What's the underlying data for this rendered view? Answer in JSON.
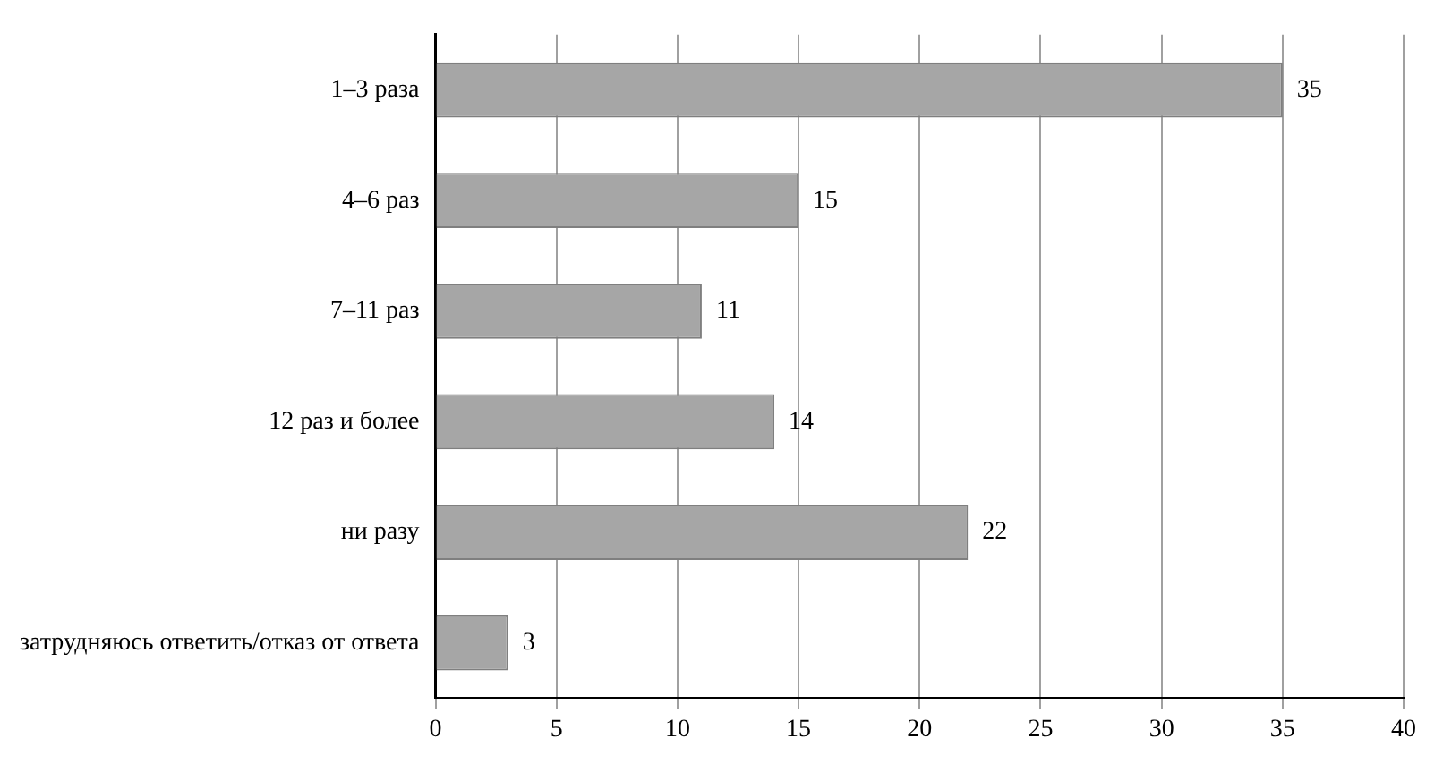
{
  "chart_data": {
    "type": "bar",
    "orientation": "horizontal",
    "categories": [
      "1–3 раза",
      "4–6 раз",
      "7–11 раз",
      "12 раз и более",
      "ни разу",
      "затрудняюсь ответить/отказ от ответа"
    ],
    "values": [
      35,
      15,
      11,
      14,
      22,
      3
    ],
    "color": "#a6a6a6",
    "xlim": [
      0,
      40
    ],
    "xticks": [
      0,
      5,
      10,
      15,
      20,
      25,
      30,
      35,
      40
    ],
    "grid": "x",
    "data_labels": true,
    "legend": false
  }
}
